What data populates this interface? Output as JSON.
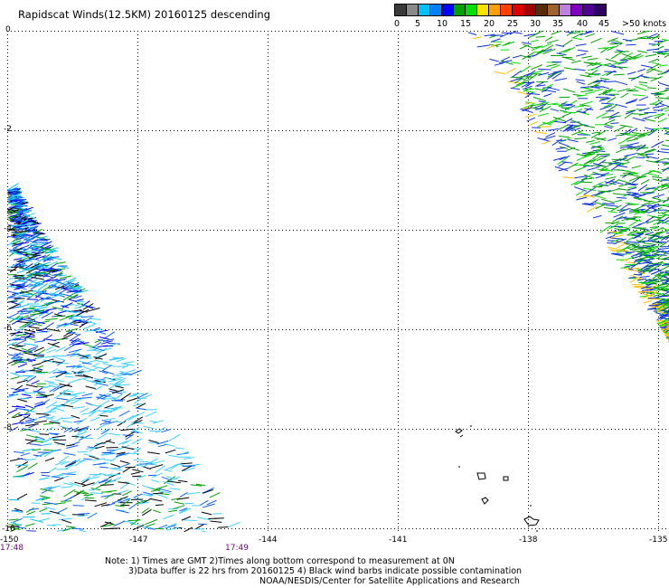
{
  "title": "Rapidscat Winds(12.5KM) 20160125 descending",
  "colorbar": {
    "swatch_colors": [
      "#3a3a3a",
      "#8a8a8a",
      "#00c0ff",
      "#0080ff",
      "#0000ff",
      "#00a000",
      "#00e000",
      "#ffe000",
      "#ffa000",
      "#ff4000",
      "#e00000",
      "#a00000",
      "#5a2a00",
      "#a06030",
      "#c080e0",
      "#8000c0",
      "#500090",
      "#300060"
    ],
    "labels": [
      "0",
      "5",
      "10",
      "15",
      "20",
      "25",
      "30",
      "35",
      "40",
      "45",
      ">50 knots"
    ]
  },
  "map": {
    "latitude_labels": [
      "0",
      "-2",
      "-4",
      "-6",
      "-8",
      "-10"
    ],
    "longitude_labels": [
      "-150",
      "-147",
      "-144",
      "-141",
      "-138",
      "-135"
    ],
    "time_labels": [
      "17:48",
      "17:49"
    ]
  },
  "notes": [
    "Note: 1) Times are GMT 2)Times along bottom correspond to measurement at 0N",
    "3)Data buffer is 22 hrs from 20160125 4) Black wind barbs indicate possible contamination",
    "NOAA/NESDIS/Center for Satellite Applications and Research"
  ]
}
